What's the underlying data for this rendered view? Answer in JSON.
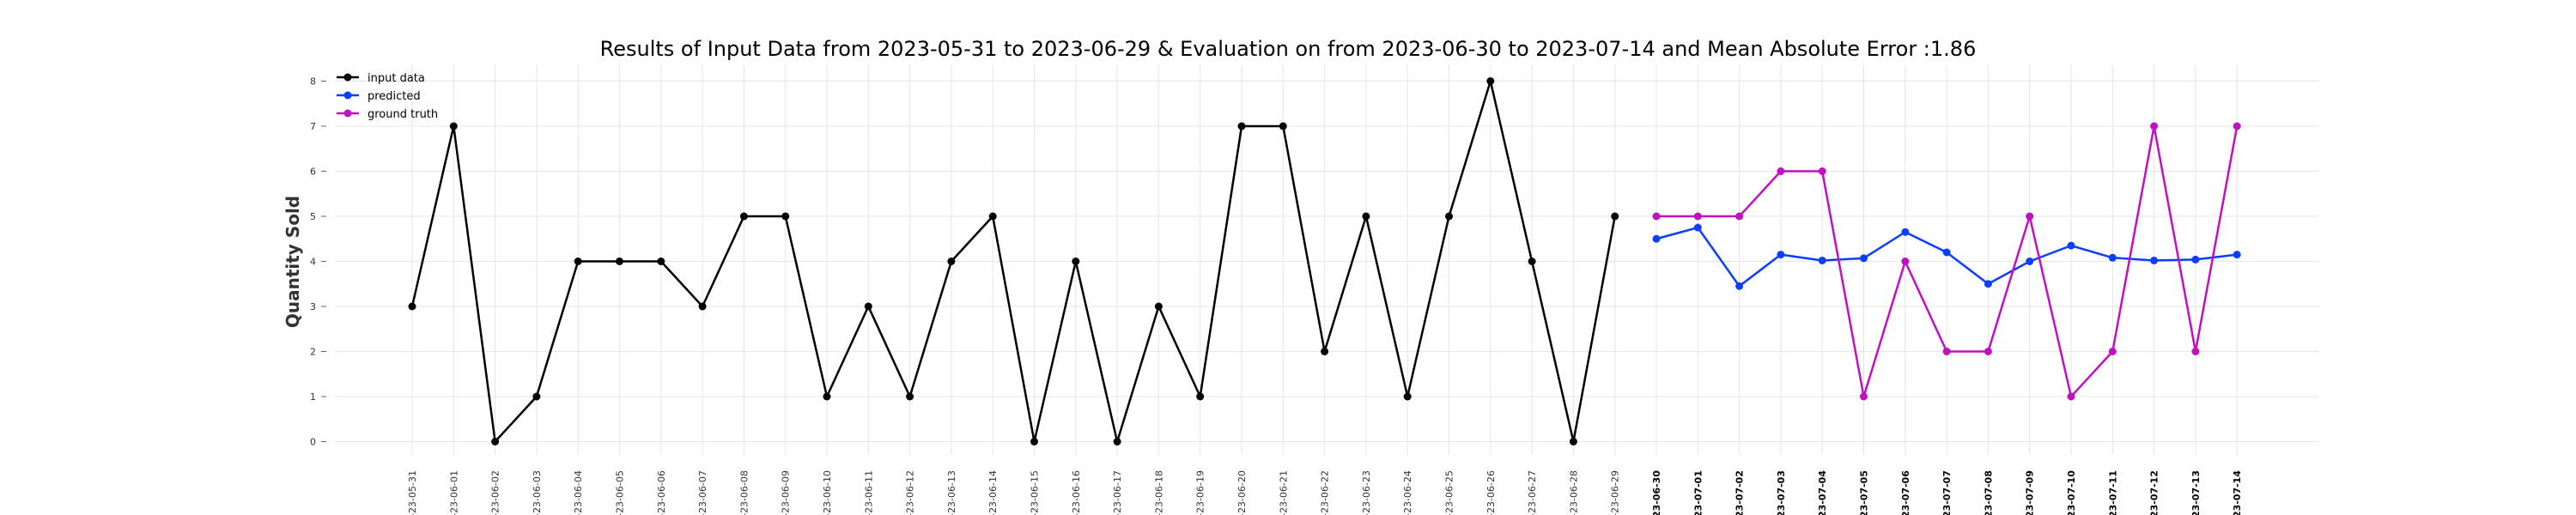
{
  "chart_data": {
    "type": "line",
    "title": "Results of Input Data from 2023-05-31 to 2023-06-29 & Evaluation on from 2023-06-30 to 2023-07-14 and Mean Absolute Error  :1.86",
    "xlabel": "",
    "ylabel": "Quantity Sold",
    "ylim": [
      -0.4,
      8.4
    ],
    "yticks": [
      0,
      1,
      2,
      3,
      4,
      5,
      6,
      7,
      8
    ],
    "grid": true,
    "legend_position": "top-left",
    "x": [
      "2023-05-31",
      "2023-06-01",
      "2023-06-02",
      "2023-06-03",
      "2023-06-04",
      "2023-06-05",
      "2023-06-06",
      "2023-06-07",
      "2023-06-08",
      "2023-06-09",
      "2023-06-10",
      "2023-06-11",
      "2023-06-12",
      "2023-06-13",
      "2023-06-14",
      "2023-06-15",
      "2023-06-16",
      "2023-06-17",
      "2023-06-18",
      "2023-06-19",
      "2023-06-20",
      "2023-06-21",
      "2023-06-22",
      "2023-06-23",
      "2023-06-24",
      "2023-06-25",
      "2023-06-26",
      "2023-06-27",
      "2023-06-28",
      "2023-06-29",
      "2023-06-30",
      "2023-07-01",
      "2023-07-02",
      "2023-07-03",
      "2023-07-04",
      "2023-07-05",
      "2023-07-06",
      "2023-07-07",
      "2023-07-08",
      "2023-07-09",
      "2023-07-10",
      "2023-07-11",
      "2023-07-12",
      "2023-07-13",
      "2023-07-14"
    ],
    "xtick_labels": [
      "-23-05-31",
      "-23-06-01",
      "-23-06-02",
      "-23-06-03",
      "-23-06-04",
      "-23-06-05",
      "-23-06-06",
      "-23-06-07",
      "-23-06-08",
      "-23-06-09",
      "-23-06-10",
      "-23-06-11",
      "-23-06-12",
      "-23-06-13",
      "-23-06-14",
      "-23-06-15",
      "-23-06-16",
      "-23-06-17",
      "-23-06-18",
      "-23-06-19",
      "-23-06-20",
      "-23-06-21",
      "-23-06-22",
      "-23-06-23",
      "-23-06-24",
      "-23-06-25",
      "-23-06-26",
      "-23-06-27",
      "-23-06-28",
      "-23-06-29",
      "-23-06-30",
      "-23-07-01",
      "-23-07-02",
      "-23-07-03",
      "-23-07-04",
      "-23-07-05",
      "-23-07-06",
      "-23-07-07",
      "-23-07-08",
      "-23-07-09",
      "-23-07-10",
      "-23-07-11",
      "-23-07-12",
      "-23-07-13",
      "-23-07-14"
    ],
    "bold_tick_from": "2023-06-30",
    "series": [
      {
        "name": "input data",
        "color": "#000000",
        "x": [
          "2023-05-31",
          "2023-06-01",
          "2023-06-02",
          "2023-06-03",
          "2023-06-04",
          "2023-06-05",
          "2023-06-06",
          "2023-06-07",
          "2023-06-08",
          "2023-06-09",
          "2023-06-10",
          "2023-06-11",
          "2023-06-12",
          "2023-06-13",
          "2023-06-14",
          "2023-06-15",
          "2023-06-16",
          "2023-06-17",
          "2023-06-18",
          "2023-06-19",
          "2023-06-20",
          "2023-06-21",
          "2023-06-22",
          "2023-06-23",
          "2023-06-24",
          "2023-06-25",
          "2023-06-26",
          "2023-06-27",
          "2023-06-28",
          "2023-06-29"
        ],
        "values": [
          3,
          7,
          0,
          1,
          4,
          4,
          4,
          3,
          5,
          5,
          1,
          3,
          1,
          4,
          5,
          0,
          4,
          0,
          3,
          1,
          7,
          7,
          2,
          5,
          1,
          5,
          8,
          4,
          0,
          5
        ]
      },
      {
        "name": "predicted",
        "color": "#0a3fff",
        "x": [
          "2023-06-30",
          "2023-07-01",
          "2023-07-02",
          "2023-07-03",
          "2023-07-04",
          "2023-07-05",
          "2023-07-06",
          "2023-07-07",
          "2023-07-08",
          "2023-07-09",
          "2023-07-10",
          "2023-07-11",
          "2023-07-12",
          "2023-07-13",
          "2023-07-14"
        ],
        "values": [
          4.5,
          4.75,
          3.45,
          4.15,
          4.02,
          4.07,
          4.65,
          4.2,
          3.5,
          4.0,
          4.35,
          4.08,
          4.02,
          4.04,
          4.15
        ]
      },
      {
        "name": "ground truth",
        "color": "#c010c0",
        "x": [
          "2023-06-30",
          "2023-07-01",
          "2023-07-02",
          "2023-07-03",
          "2023-07-04",
          "2023-07-05",
          "2023-07-06",
          "2023-07-07",
          "2023-07-08",
          "2023-07-09",
          "2023-07-10",
          "2023-07-11",
          "2023-07-12",
          "2023-07-13",
          "2023-07-14"
        ],
        "values": [
          5,
          5,
          5,
          6,
          6,
          1,
          4,
          2,
          2,
          5,
          1,
          2,
          7,
          2,
          7
        ]
      }
    ]
  }
}
